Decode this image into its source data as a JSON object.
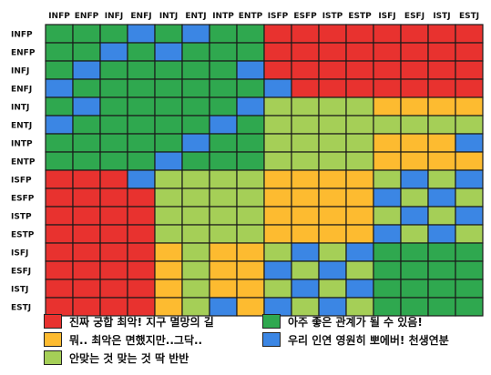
{
  "chart_data": {
    "type": "heatmap",
    "x_labels": [
      "INFP",
      "ENFP",
      "INFJ",
      "ENFJ",
      "INTJ",
      "ENTJ",
      "INTP",
      "ENTP",
      "ISFP",
      "ESFP",
      "ISTP",
      "ESTP",
      "ISFJ",
      "ESFJ",
      "ISTJ",
      "ESTJ"
    ],
    "y_labels": [
      "INFP",
      "ENFP",
      "INFJ",
      "ENFJ",
      "INTJ",
      "ENTJ",
      "INTP",
      "ENTP",
      "ISFP",
      "ESFP",
      "ISTP",
      "ESTP",
      "ISFJ",
      "ESFJ",
      "ISTJ",
      "ESTJ"
    ],
    "categories": {
      "worst": {
        "label": "진짜 궁합 최악! 지구 멸망의 길",
        "color": "#E8322F"
      },
      "meh": {
        "label": "뭐.. 최악은 면했지만..그닥..",
        "color": "#FDBB30"
      },
      "half": {
        "label": "안맞는 것 맞는 것 딱 반반",
        "color": "#A5CF57"
      },
      "good": {
        "label": "아주 좋은 관계가 될 수 있음!",
        "color": "#2FA84F"
      },
      "destiny": {
        "label": "우리 인연 영원히 뽀에버! 천생연분",
        "color": "#3B86E4"
      }
    },
    "legend_order": [
      "worst",
      "good",
      "meh",
      "destiny",
      "half"
    ],
    "matrix": [
      [
        "good",
        "good",
        "good",
        "destiny",
        "good",
        "destiny",
        "good",
        "good",
        "worst",
        "worst",
        "worst",
        "worst",
        "worst",
        "worst",
        "worst",
        "worst"
      ],
      [
        "good",
        "good",
        "destiny",
        "good",
        "destiny",
        "good",
        "good",
        "good",
        "worst",
        "worst",
        "worst",
        "worst",
        "worst",
        "worst",
        "worst",
        "worst"
      ],
      [
        "good",
        "destiny",
        "good",
        "good",
        "good",
        "good",
        "good",
        "destiny",
        "worst",
        "worst",
        "worst",
        "worst",
        "worst",
        "worst",
        "worst",
        "worst"
      ],
      [
        "destiny",
        "good",
        "good",
        "good",
        "good",
        "good",
        "good",
        "good",
        "destiny",
        "worst",
        "worst",
        "worst",
        "worst",
        "worst",
        "worst",
        "worst"
      ],
      [
        "good",
        "destiny",
        "good",
        "good",
        "good",
        "good",
        "good",
        "destiny",
        "half",
        "half",
        "half",
        "half",
        "meh",
        "meh",
        "meh",
        "meh"
      ],
      [
        "destiny",
        "good",
        "good",
        "good",
        "good",
        "good",
        "destiny",
        "good",
        "half",
        "half",
        "half",
        "half",
        "half",
        "half",
        "half",
        "half"
      ],
      [
        "good",
        "good",
        "good",
        "good",
        "good",
        "destiny",
        "good",
        "good",
        "half",
        "half",
        "half",
        "half",
        "meh",
        "meh",
        "meh",
        "destiny"
      ],
      [
        "good",
        "good",
        "good",
        "good",
        "destiny",
        "good",
        "good",
        "good",
        "half",
        "half",
        "half",
        "half",
        "meh",
        "meh",
        "meh",
        "meh"
      ],
      [
        "worst",
        "worst",
        "worst",
        "destiny",
        "half",
        "half",
        "half",
        "half",
        "meh",
        "meh",
        "meh",
        "meh",
        "half",
        "destiny",
        "half",
        "destiny"
      ],
      [
        "worst",
        "worst",
        "worst",
        "worst",
        "half",
        "half",
        "half",
        "half",
        "meh",
        "meh",
        "meh",
        "meh",
        "destiny",
        "half",
        "destiny",
        "half"
      ],
      [
        "worst",
        "worst",
        "worst",
        "worst",
        "half",
        "half",
        "half",
        "half",
        "meh",
        "meh",
        "meh",
        "meh",
        "half",
        "destiny",
        "half",
        "destiny"
      ],
      [
        "worst",
        "worst",
        "worst",
        "worst",
        "half",
        "half",
        "half",
        "half",
        "meh",
        "meh",
        "meh",
        "meh",
        "destiny",
        "half",
        "destiny",
        "half"
      ],
      [
        "worst",
        "worst",
        "worst",
        "worst",
        "meh",
        "half",
        "meh",
        "meh",
        "half",
        "destiny",
        "half",
        "destiny",
        "good",
        "good",
        "good",
        "good"
      ],
      [
        "worst",
        "worst",
        "worst",
        "worst",
        "meh",
        "half",
        "meh",
        "meh",
        "destiny",
        "half",
        "destiny",
        "half",
        "good",
        "good",
        "good",
        "good"
      ],
      [
        "worst",
        "worst",
        "worst",
        "worst",
        "meh",
        "half",
        "meh",
        "meh",
        "half",
        "destiny",
        "half",
        "destiny",
        "good",
        "good",
        "good",
        "good"
      ],
      [
        "worst",
        "worst",
        "worst",
        "worst",
        "meh",
        "half",
        "destiny",
        "meh",
        "destiny",
        "half",
        "destiny",
        "half",
        "good",
        "good",
        "good",
        "good"
      ]
    ]
  }
}
